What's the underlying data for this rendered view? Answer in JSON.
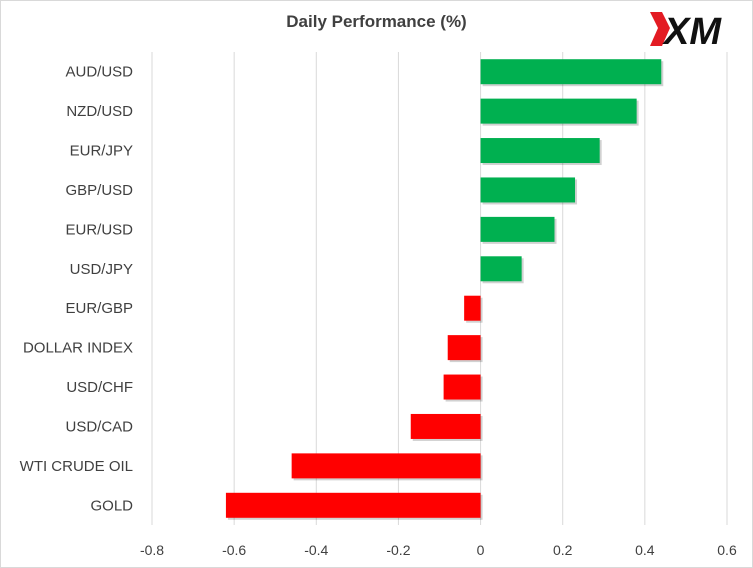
{
  "header": {
    "title": "Daily Performance (%)",
    "logo_text": "XM"
  },
  "colors": {
    "positive": "#00b050",
    "negative": "#ff0000",
    "grid": "#d9d9d9",
    "text": "#404040",
    "logo_red": "#e31b23"
  },
  "chart_data": {
    "type": "bar",
    "orientation": "horizontal",
    "title": "Daily Performance (%)",
    "xlabel": "",
    "ylabel": "",
    "categories": [
      "AUD/USD",
      "NZD/USD",
      "EUR/JPY",
      "GBP/USD",
      "EUR/USD",
      "USD/JPY",
      "EUR/GBP",
      "DOLLAR INDEX",
      "USD/CHF",
      "USD/CAD",
      "WTI CRUDE OIL",
      "GOLD"
    ],
    "values": [
      0.44,
      0.38,
      0.29,
      0.23,
      0.18,
      0.1,
      -0.04,
      -0.08,
      -0.09,
      -0.17,
      -0.46,
      -0.62
    ],
    "xlim": [
      -0.8,
      0.6
    ],
    "xticks": [
      "-0.8",
      "-0.6",
      "-0.4",
      "-0.2",
      "0",
      "0.2",
      "0.4",
      "0.6"
    ],
    "grid": "vertical",
    "legend": "none"
  }
}
